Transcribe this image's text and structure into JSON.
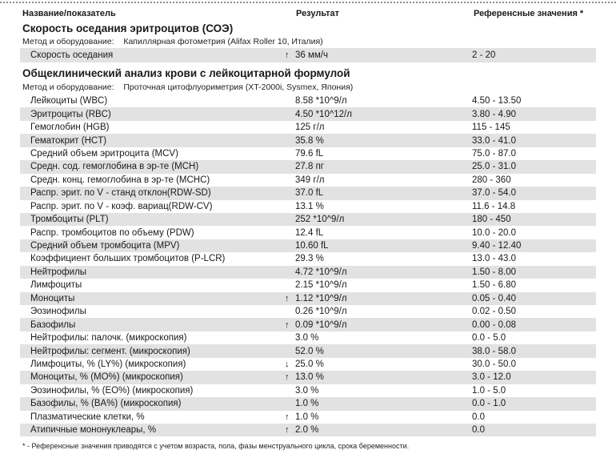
{
  "header": {
    "col_name": "Название/показатель",
    "col_result": "Результат",
    "col_reference": "Референсные значения *"
  },
  "flags": {
    "up": "↑",
    "down": "↓"
  },
  "colors": {
    "row_shade": "#e2e2e2",
    "text": "#1a1a1a",
    "dotted_border": "#8f8f8f"
  },
  "sections": [
    {
      "title": "Скорость оседания эритроцитов (СОЭ)",
      "method_label": "Метод и оборудование:",
      "method_value": "Капиллярная фотометрия (Alifax Roller 10, Италия)",
      "shade_offset": 0,
      "rows": [
        {
          "name": "Скорость оседания",
          "flag": "up",
          "result": "36 мм/ч",
          "reference": "2 - 20"
        }
      ]
    },
    {
      "title": "Общеклинический анализ крови с лейкоцитарной формулой",
      "method_label": "Метод и оборудование:",
      "method_value": "Проточная цитофлуориметрия (XT-2000i, Sysmex, Япония)",
      "shade_offset": 1,
      "rows": [
        {
          "name": "Лейкоциты (WBC)",
          "flag": "",
          "result": "8.58 *10^9/л",
          "reference": "4.50 - 13.50"
        },
        {
          "name": "Эритроциты (RBC)",
          "flag": "",
          "result": "4.50 *10^12/л",
          "reference": "3.80 - 4.90"
        },
        {
          "name": "Гемоглобин (HGB)",
          "flag": "",
          "result": "125 г/л",
          "reference": "115 - 145"
        },
        {
          "name": "Гематокрит (HCT)",
          "flag": "",
          "result": "35.8 %",
          "reference": "33.0 - 41.0"
        },
        {
          "name": "Средний объем эритроцита (MCV)",
          "flag": "",
          "result": "79.6 fL",
          "reference": "75.0 - 87.0"
        },
        {
          "name": "Средн. сод. гемоглобина в эр-те (MCH)",
          "flag": "",
          "result": "27.8 пг",
          "reference": "25.0 - 31.0"
        },
        {
          "name": "Средн. конц. гемоглобина в эр-те (MCHC)",
          "flag": "",
          "result": "349 г/л",
          "reference": "280 - 360"
        },
        {
          "name": "Распр. эрит. по V - станд отклон(RDW-SD)",
          "flag": "",
          "result": "37.0 fL",
          "reference": "37.0 - 54.0"
        },
        {
          "name": "Распр. эрит. по V - коэф. вариац(RDW-CV)",
          "flag": "",
          "result": "13.1 %",
          "reference": "11.6 - 14.8"
        },
        {
          "name": "Тромбоциты (PLT)",
          "flag": "",
          "result": "252 *10^9/л",
          "reference": "180 - 450"
        },
        {
          "name": "Распр. тромбоцитов по объему (PDW)",
          "flag": "",
          "result": "12.4 fL",
          "reference": "10.0 - 20.0"
        },
        {
          "name": "Средний объем тромбоцита (MPV)",
          "flag": "",
          "result": "10.60 fL",
          "reference": "9.40 - 12.40"
        },
        {
          "name": "Коэффициент больших тромбоцитов (P-LCR)",
          "flag": "",
          "result": "29.3 %",
          "reference": "13.0 - 43.0"
        },
        {
          "name": "Нейтрофилы",
          "flag": "",
          "result": "4.72 *10^9/л",
          "reference": "1.50 - 8.00"
        },
        {
          "name": "Лимфоциты",
          "flag": "",
          "result": "2.15 *10^9/л",
          "reference": "1.50 - 6.80"
        },
        {
          "name": "Моноциты",
          "flag": "up",
          "result": "1.12 *10^9/л",
          "reference": "0.05 - 0.40"
        },
        {
          "name": "Эозинофилы",
          "flag": "",
          "result": "0.26 *10^9/л",
          "reference": "0.02 - 0.50"
        },
        {
          "name": "Базофилы",
          "flag": "up",
          "result": "0.09 *10^9/л",
          "reference": "0.00 - 0.08"
        },
        {
          "name": "Нейтрофилы: палочк. (микроскопия)",
          "flag": "",
          "result": "3.0 %",
          "reference": "0.0 - 5.0"
        },
        {
          "name": "Нейтрофилы: сегмент. (микроскопия)",
          "flag": "",
          "result": "52.0 %",
          "reference": "38.0 - 58.0"
        },
        {
          "name": "Лимфоциты, % (LY%) (микроскопия)",
          "flag": "down",
          "result": "25.0 %",
          "reference": "30.0 - 50.0"
        },
        {
          "name": "Моноциты, % (MO%) (микроскопия)",
          "flag": "up",
          "result": "13.0 %",
          "reference": "3.0 - 12.0"
        },
        {
          "name": "Эозинофилы, % (EO%) (микроскопия)",
          "flag": "",
          "result": "3.0 %",
          "reference": "1.0 - 5.0"
        },
        {
          "name": "Базофилы, % (BA%) (микроскопия)",
          "flag": "",
          "result": "1.0 %",
          "reference": "0.0 - 1.0"
        },
        {
          "name": "Плазматические клетки, %",
          "flag": "up",
          "result": "1.0 %",
          "reference": "0.0"
        },
        {
          "name": "Атипичные мононуклеары, %",
          "flag": "up",
          "result": "2.0 %",
          "reference": "0.0"
        }
      ]
    }
  ],
  "footnote": "* - Референсные значения приводятся с учетом возраста, пола, фазы менструального цикла, срока беременности."
}
